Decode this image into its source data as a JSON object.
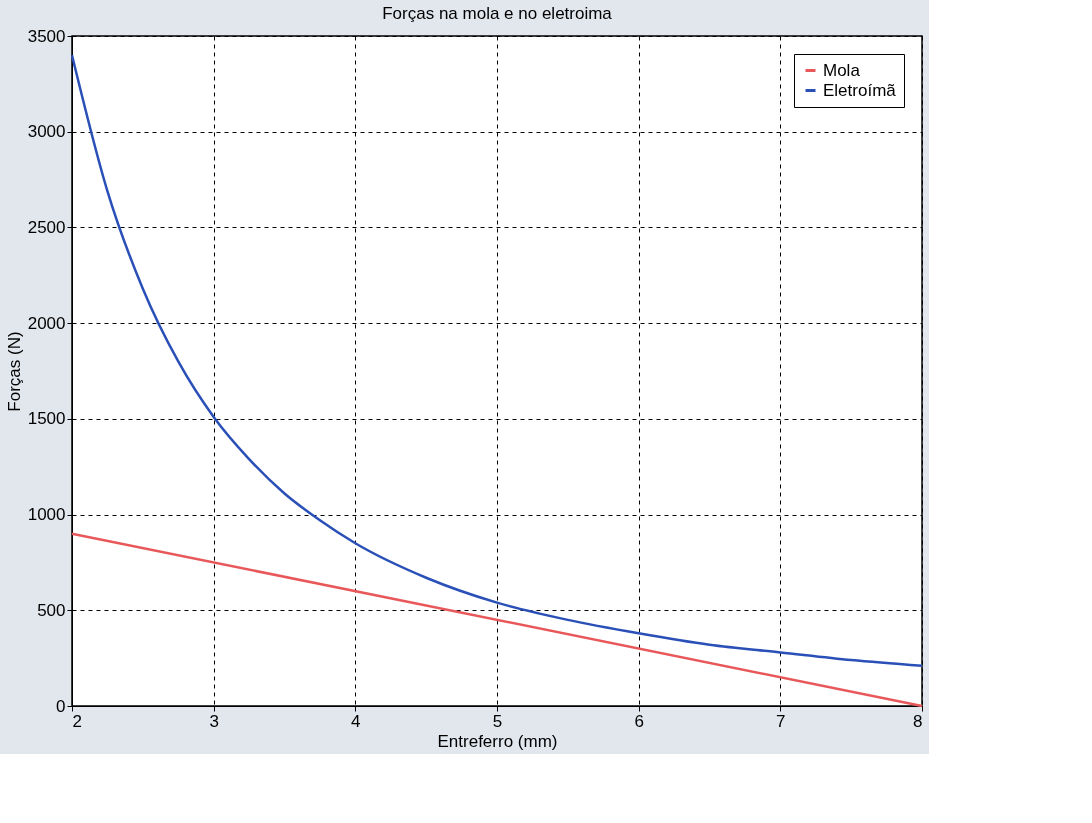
{
  "chart_data": {
    "type": "line",
    "title": "Forças na mola e no eletroima",
    "xlabel": "Entreferro (mm)",
    "ylabel": "Forças (N)",
    "xlim": [
      2,
      8
    ],
    "xticks": [
      2,
      3,
      4,
      5,
      6,
      7,
      8
    ],
    "ylim": [
      0,
      3500
    ],
    "yticks": [
      0,
      500,
      1000,
      1500,
      2000,
      2500,
      3000,
      3500
    ],
    "grid": true,
    "legend": "top right",
    "line_style": "solid",
    "series": [
      {
        "name": "Mola",
        "color": "#e8585a",
        "x": [
          2,
          8
        ],
        "values": [
          900,
          0
        ]
      },
      {
        "name": "Eletroímã",
        "color": "#2a50b8",
        "x": [
          2,
          2.25,
          2.5,
          2.75,
          3,
          3.25,
          3.5,
          3.75,
          4,
          4.5,
          5,
          5.5,
          6,
          6.5,
          7,
          7.5,
          8
        ],
        "values": [
          3400,
          2690,
          2180,
          1800,
          1510,
          1290,
          1110,
          970,
          850,
          670,
          540,
          450,
          380,
          320,
          280,
          240,
          210
        ]
      }
    ]
  }
}
